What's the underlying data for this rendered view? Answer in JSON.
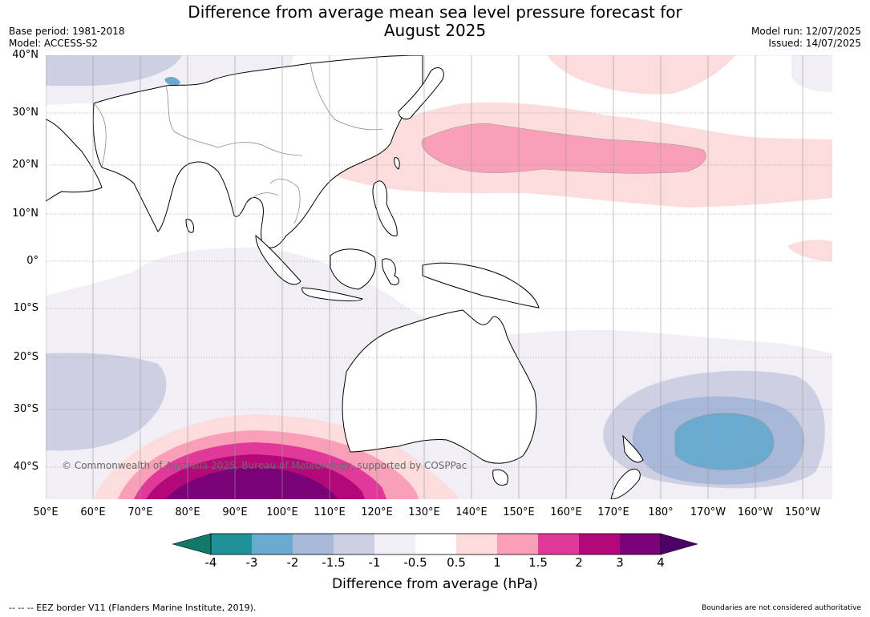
{
  "header": {
    "title_line1": "Difference from average mean sea level pressure forecast for",
    "title_line2": "August 2025",
    "base_period": "Base period: 1981-2018",
    "model": "Model: ACCESS-S2",
    "model_run": "Model run: 12/07/2025",
    "issued": "Issued: 14/07/2025"
  },
  "map": {
    "lat_labels": [
      "40°N",
      "30°N",
      "20°N",
      "10°N",
      "0°",
      "10°S",
      "20°S",
      "30°S",
      "40°S"
    ],
    "lon_labels": [
      "50°E",
      "60°E",
      "70°E",
      "80°E",
      "90°E",
      "100°E",
      "110°E",
      "120°E",
      "130°E",
      "140°E",
      "150°E",
      "160°E",
      "170°E",
      "180°",
      "170°W",
      "160°W",
      "150°W"
    ],
    "land_color": "#ffffff",
    "coastline_color": "#000000",
    "border_color": "#8c8c8c",
    "watermark": "© Commonwealth of Australia 2025, Bureau of Meteorology, supported by COSPPac"
  },
  "colorbar": {
    "ticks": [
      "-4",
      "-3",
      "-2",
      "-1.5",
      "-1",
      "-0.5",
      "0.5",
      "1",
      "1.5",
      "2",
      "3",
      "4"
    ],
    "colors": {
      "below": "#0f7a6a",
      "n4_n3": "#1f9298",
      "n3_n2": "#6aaad0",
      "n2_n15": "#a8b8d8",
      "n15_n1": "#cdd0e3",
      "n1_n05": "#f2eef6",
      "n05_05": "#ffffff",
      "p05_1": "#fcdcdc",
      "p1_15": "#f9a0b8",
      "p15_2": "#e0399a",
      "p2_3": "#b2087a",
      "p3_4": "#7a0177",
      "above": "#4d0066"
    },
    "label": "Difference from average (hPa)"
  },
  "footer": {
    "eez_note": "--  --  -- EEZ border V11 (Flanders Marine Institute, 2019).",
    "boundaries_note": "Boundaries are not considered authoritative"
  }
}
